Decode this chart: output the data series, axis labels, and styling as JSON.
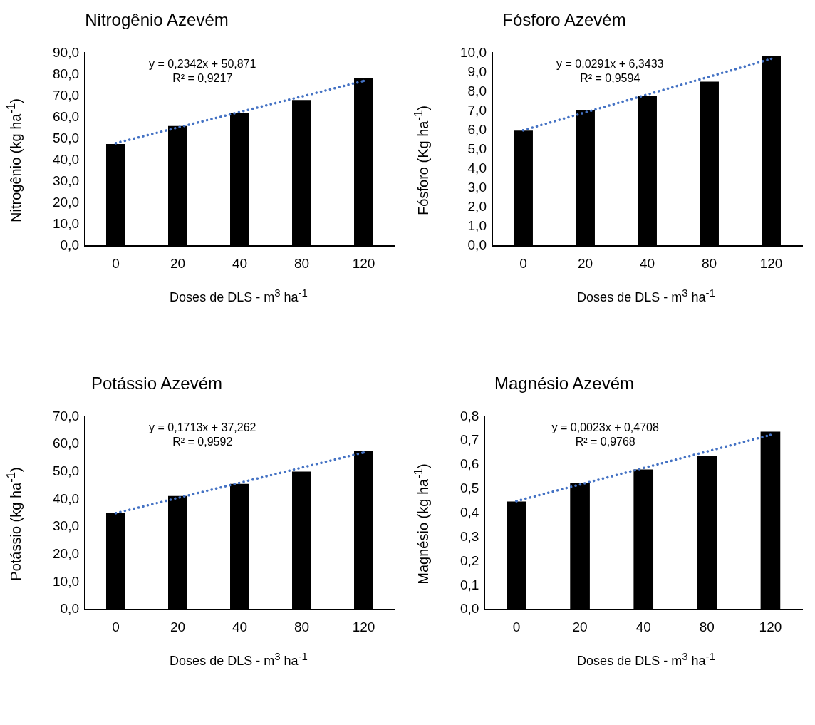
{
  "chart_data": [
    {
      "type": "bar",
      "title": "Nitrogênio Azevém",
      "xlabel": "Doses de DLS - m$^{3}$ ha$^{-1}$",
      "ylabel": "Nitrogênio (kg ha$^{-1}$)",
      "categories": [
        "0",
        "20",
        "40",
        "80",
        "120"
      ],
      "series": [
        {
          "color": "#000000",
          "values": [
            47.6,
            56.0,
            61.9,
            68.1,
            78.5
          ]
        },
        {
          "type": "line",
          "color": "#4472c4",
          "line_style": "dotted",
          "x": [
            "0",
            "120"
          ],
          "values": [
            48,
            77
          ]
        }
      ],
      "ylim": [
        0,
        90
      ],
      "yticks": [
        {
          "value": 0,
          "label": "0,0"
        },
        {
          "value": 10,
          "label": "10,0"
        },
        {
          "value": 20,
          "label": "20,0"
        },
        {
          "value": 30,
          "label": "30,0"
        },
        {
          "value": 40,
          "label": "40,0"
        },
        {
          "value": 50,
          "label": "50,0"
        },
        {
          "value": 60,
          "label": "60,0"
        },
        {
          "value": 70,
          "label": "70,0"
        },
        {
          "value": 80,
          "label": "80,0"
        },
        {
          "value": 90,
          "label": "90,0"
        }
      ],
      "annotations": [
        "y = 0,2342x + 50,871",
        "R² = 0,9217"
      ]
    },
    {
      "type": "bar",
      "title": "Fósforo Azevém",
      "xlabel": "Doses de DLS - m$^{3}$ ha$^{-1}$",
      "ylabel": "Fósforo (Kg ha$^{-1}$)",
      "categories": [
        "0",
        "20",
        "40",
        "80",
        "120"
      ],
      "series": [
        {
          "color": "#000000",
          "values": [
            5.98,
            7.04,
            7.76,
            8.52,
            9.86
          ]
        },
        {
          "type": "line",
          "color": "#4472c4",
          "line_style": "dotted",
          "x": [
            "0",
            "120"
          ],
          "values": [
            6.0,
            9.7
          ]
        }
      ],
      "ylim": [
        0,
        10
      ],
      "yticks": [
        {
          "value": 0,
          "label": "0,0"
        },
        {
          "value": 1,
          "label": "1,0"
        },
        {
          "value": 2,
          "label": "2,0"
        },
        {
          "value": 3,
          "label": "3,0"
        },
        {
          "value": 4,
          "label": "4,0"
        },
        {
          "value": 5,
          "label": "5,0"
        },
        {
          "value": 6,
          "label": "6,0"
        },
        {
          "value": 7,
          "label": "7,0"
        },
        {
          "value": 8,
          "label": "8,0"
        },
        {
          "value": 9,
          "label": "9,0"
        },
        {
          "value": 10,
          "label": "10,0"
        }
      ],
      "annotations": [
        "y = 0,0291x + 6,3433",
        "R² = 0,9594"
      ]
    },
    {
      "type": "bar",
      "title": "Potássio Azevém",
      "xlabel": "Doses de DLS - m$^{3}$ ha$^{-1}$",
      "ylabel": "Potássio (kg ha$^{-1}$)",
      "categories": [
        "0",
        "20",
        "40",
        "80",
        "120"
      ],
      "series": [
        {
          "color": "#000000",
          "values": [
            35.0,
            41.2,
            45.6,
            50.1,
            57.7
          ]
        },
        {
          "type": "line",
          "color": "#4472c4",
          "line_style": "dotted",
          "x": [
            "0",
            "120"
          ],
          "values": [
            35.0,
            57.0
          ]
        }
      ],
      "ylim": [
        0,
        70
      ],
      "yticks": [
        {
          "value": 0,
          "label": "0,0"
        },
        {
          "value": 10,
          "label": "10,0"
        },
        {
          "value": 20,
          "label": "20,0"
        },
        {
          "value": 30,
          "label": "30,0"
        },
        {
          "value": 40,
          "label": "40,0"
        },
        {
          "value": 50,
          "label": "50,0"
        },
        {
          "value": 60,
          "label": "60,0"
        },
        {
          "value": 70,
          "label": "70,0"
        }
      ],
      "annotations": [
        "y = 0,1713x + 37,262",
        "R² = 0,9592"
      ]
    },
    {
      "type": "bar",
      "title": "Magnésio Azevém",
      "xlabel": "Doses de DLS - m$^{3}$ ha$^{-1}$",
      "ylabel": "Magnésio (kg ha$^{-1}$)",
      "categories": [
        "0",
        "20",
        "40",
        "80",
        "120"
      ],
      "series": [
        {
          "color": "#000000",
          "values": [
            0.448,
            0.526,
            0.581,
            0.638,
            0.738
          ]
        },
        {
          "type": "line",
          "color": "#4472c4",
          "line_style": "dotted",
          "x": [
            "0",
            "120"
          ],
          "values": [
            0.45,
            0.724
          ]
        }
      ],
      "ylim": [
        0,
        0.8
      ],
      "yticks": [
        {
          "value": 0,
          "label": "0,0"
        },
        {
          "value": 0.1,
          "label": "0,1"
        },
        {
          "value": 0.2,
          "label": "0,2"
        },
        {
          "value": 0.3,
          "label": "0,3"
        },
        {
          "value": 0.4,
          "label": "0,4"
        },
        {
          "value": 0.5,
          "label": "0,5"
        },
        {
          "value": 0.6,
          "label": "0,6"
        },
        {
          "value": 0.7,
          "label": "0,7"
        },
        {
          "value": 0.8,
          "label": "0,8"
        }
      ],
      "annotations": [
        "y = 0,0023x + 0,4708",
        "R² = 0,9768"
      ]
    }
  ]
}
